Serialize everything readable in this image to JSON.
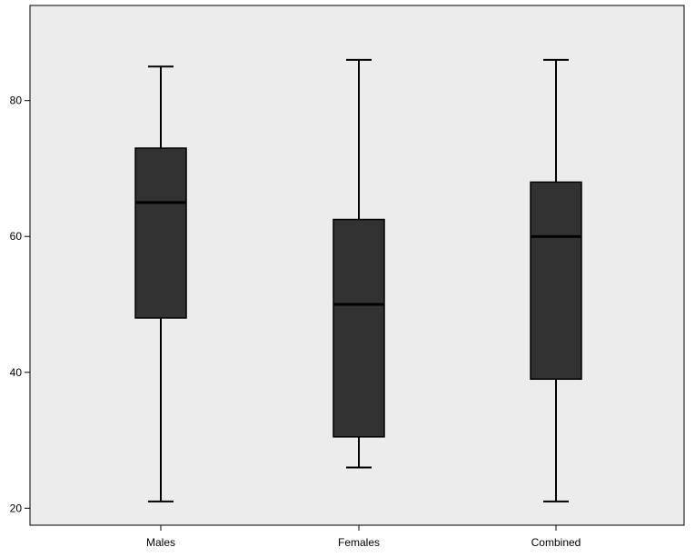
{
  "chart_data": {
    "type": "boxplot",
    "title": "",
    "xlabel": "",
    "ylabel": "",
    "categories": [
      "Males",
      "Females",
      "Combined"
    ],
    "boxes": [
      {
        "category": "Males",
        "min": 21,
        "q1": 48,
        "median": 65,
        "q3": 73,
        "max": 85
      },
      {
        "category": "Females",
        "min": 26,
        "q1": 30.5,
        "median": 50,
        "q3": 62.5,
        "max": 86
      },
      {
        "category": "Combined",
        "min": 21,
        "q1": 39,
        "median": 60,
        "q3": 68,
        "max": 86
      }
    ],
    "yticks": [
      20,
      40,
      60,
      80
    ],
    "ylim": [
      17.5,
      94
    ],
    "grid": false,
    "legend": "none",
    "colors": {
      "plot_background": "#ececec",
      "box_fill": "#323232",
      "median_line": "#000000",
      "whisker": "#000000",
      "axis": "#000000"
    }
  }
}
